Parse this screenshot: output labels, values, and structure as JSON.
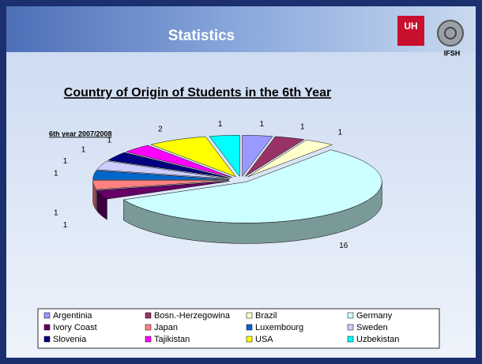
{
  "header": {
    "title": "Statistics",
    "logo_left": "UH",
    "logo_right": "IFSH"
  },
  "chart_data": {
    "type": "pie3d",
    "title": "Country of Origin of Students in the 6th Year",
    "subtitle": "6th year 2007/2008",
    "categories": [
      "Argentinia",
      "Bosn.-Herzegowina",
      "Brazil",
      "Germany",
      "Ivory Coast",
      "Japan",
      "Luxembourg",
      "Sweden",
      "Slovenia",
      "Tajikistan",
      "USA",
      "Uzbekistan"
    ],
    "values": [
      1,
      1,
      1,
      16,
      1,
      1,
      1,
      1,
      1,
      1,
      2,
      1
    ],
    "colors": [
      "#9999ff",
      "#993366",
      "#ffffcc",
      "#ccffff",
      "#660066",
      "#ff8080",
      "#0066cc",
      "#ccccff",
      "#000080",
      "#ff00ff",
      "#ffff00",
      "#00ffff"
    ],
    "legend": "bottom"
  }
}
